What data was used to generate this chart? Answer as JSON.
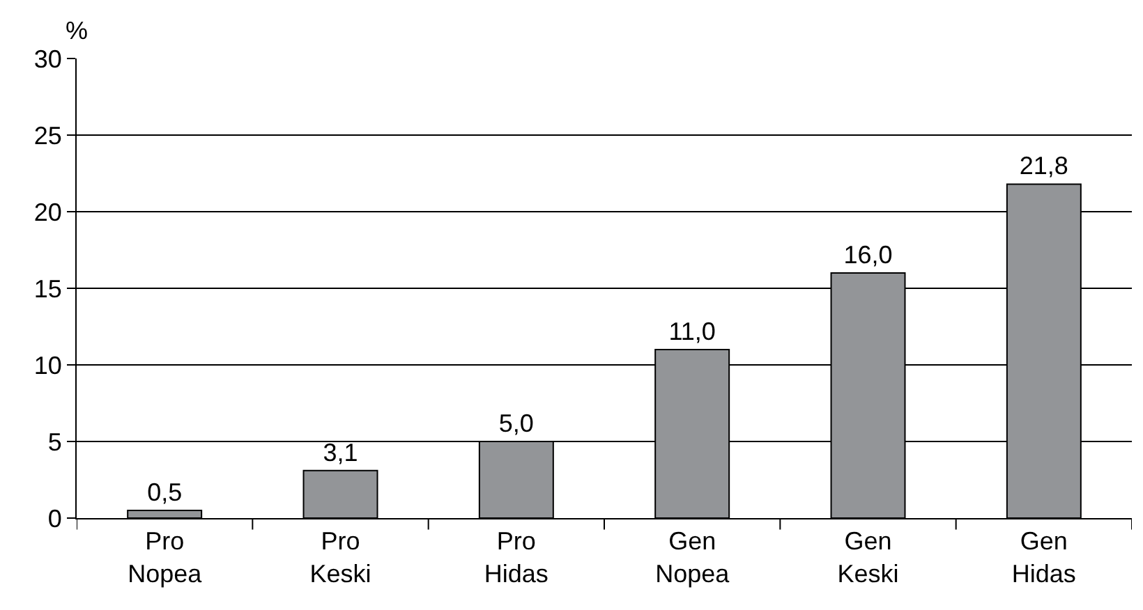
{
  "chart_data": {
    "type": "bar",
    "ylabel": "%",
    "categories": [
      "Pro\nNopea",
      "Pro\nKeski",
      "Pro\nHidas",
      "Gen\nNopea",
      "Gen\nKeski",
      "Gen\nHidas"
    ],
    "values": [
      0.5,
      3.1,
      5.0,
      11.0,
      16.0,
      21.8
    ],
    "value_labels": [
      "0,5",
      "3,1",
      "5,0",
      "11,0",
      "16,0",
      "21,8"
    ],
    "color": "#939598",
    "ylim": [
      0,
      30
    ],
    "yticks": [
      0,
      5,
      10,
      15,
      20,
      25,
      30
    ],
    "grid": "y"
  }
}
